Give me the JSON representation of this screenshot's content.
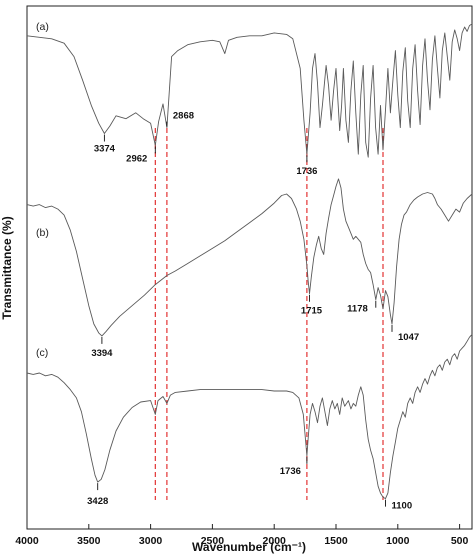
{
  "chart_data": {
    "type": "line",
    "xlabel": "Wavenumber (cm⁻¹)",
    "ylabel": "Transmittance (%)",
    "xlim": [
      4000,
      400
    ],
    "x_reversed": true,
    "x_ticks": [
      4000,
      3500,
      3000,
      2500,
      2000,
      1500,
      1000,
      500
    ],
    "y_tick_labels": false,
    "ref_line_color": "#e02020",
    "trace_color": "#5a5a5a",
    "reference_lines": [
      2962,
      2868,
      1736,
      1120
    ],
    "series": [
      {
        "name": "(a)",
        "points": [
          [
            4000,
            0.92
          ],
          [
            3900,
            0.91
          ],
          [
            3800,
            0.9
          ],
          [
            3700,
            0.87
          ],
          [
            3620,
            0.78
          ],
          [
            3550,
            0.62
          ],
          [
            3480,
            0.45
          ],
          [
            3420,
            0.33
          ],
          [
            3374,
            0.26
          ],
          [
            3330,
            0.31
          ],
          [
            3280,
            0.38
          ],
          [
            3200,
            0.36
          ],
          [
            3120,
            0.4
          ],
          [
            3060,
            0.36
          ],
          [
            3000,
            0.33
          ],
          [
            2962,
            0.18
          ],
          [
            2935,
            0.34
          ],
          [
            2900,
            0.46
          ],
          [
            2868,
            0.3
          ],
          [
            2830,
            0.78
          ],
          [
            2780,
            0.82
          ],
          [
            2700,
            0.86
          ],
          [
            2600,
            0.88
          ],
          [
            2500,
            0.89
          ],
          [
            2440,
            0.88
          ],
          [
            2400,
            0.8
          ],
          [
            2370,
            0.89
          ],
          [
            2300,
            0.91
          ],
          [
            2200,
            0.92
          ],
          [
            2100,
            0.92
          ],
          [
            2000,
            0.94
          ],
          [
            1900,
            0.93
          ],
          [
            1850,
            0.9
          ],
          [
            1790,
            0.7
          ],
          [
            1760,
            0.35
          ],
          [
            1736,
            0.12
          ],
          [
            1710,
            0.4
          ],
          [
            1690,
            0.7
          ],
          [
            1670,
            0.8
          ],
          [
            1650,
            0.6
          ],
          [
            1630,
            0.3
          ],
          [
            1610,
            0.45
          ],
          [
            1580,
            0.72
          ],
          [
            1560,
            0.58
          ],
          [
            1540,
            0.35
          ],
          [
            1520,
            0.55
          ],
          [
            1500,
            0.7
          ],
          [
            1470,
            0.28
          ],
          [
            1455,
            0.45
          ],
          [
            1440,
            0.7
          ],
          [
            1420,
            0.35
          ],
          [
            1400,
            0.2
          ],
          [
            1380,
            0.55
          ],
          [
            1360,
            0.75
          ],
          [
            1340,
            0.4
          ],
          [
            1320,
            0.12
          ],
          [
            1300,
            0.52
          ],
          [
            1280,
            0.72
          ],
          [
            1260,
            0.2
          ],
          [
            1240,
            0.1
          ],
          [
            1220,
            0.5
          ],
          [
            1200,
            0.72
          ],
          [
            1180,
            0.3
          ],
          [
            1160,
            0.12
          ],
          [
            1140,
            0.45
          ],
          [
            1120,
            0.15
          ],
          [
            1100,
            0.42
          ],
          [
            1080,
            0.7
          ],
          [
            1060,
            0.4
          ],
          [
            1040,
            0.62
          ],
          [
            1020,
            0.82
          ],
          [
            1000,
            0.52
          ],
          [
            980,
            0.3
          ],
          [
            960,
            0.68
          ],
          [
            940,
            0.84
          ],
          [
            920,
            0.48
          ],
          [
            900,
            0.3
          ],
          [
            880,
            0.7
          ],
          [
            860,
            0.86
          ],
          [
            840,
            0.55
          ],
          [
            820,
            0.32
          ],
          [
            800,
            0.72
          ],
          [
            780,
            0.9
          ],
          [
            760,
            0.62
          ],
          [
            740,
            0.42
          ],
          [
            720,
            0.76
          ],
          [
            700,
            0.92
          ],
          [
            680,
            0.7
          ],
          [
            660,
            0.5
          ],
          [
            640,
            0.82
          ],
          [
            620,
            0.94
          ],
          [
            600,
            0.78
          ],
          [
            580,
            0.62
          ],
          [
            560,
            0.88
          ],
          [
            540,
            0.96
          ],
          [
            520,
            0.9
          ],
          [
            500,
            0.82
          ],
          [
            480,
            0.94
          ],
          [
            460,
            0.98
          ],
          [
            440,
            0.95
          ],
          [
            420,
            0.99
          ],
          [
            400,
            1.0
          ]
        ]
      },
      {
        "name": "(b)",
        "points": [
          [
            4000,
            0.93
          ],
          [
            3950,
            0.92
          ],
          [
            3900,
            0.93
          ],
          [
            3850,
            0.91
          ],
          [
            3800,
            0.92
          ],
          [
            3750,
            0.9
          ],
          [
            3700,
            0.86
          ],
          [
            3650,
            0.76
          ],
          [
            3600,
            0.62
          ],
          [
            3550,
            0.44
          ],
          [
            3500,
            0.26
          ],
          [
            3460,
            0.14
          ],
          [
            3420,
            0.08
          ],
          [
            3394,
            0.06
          ],
          [
            3360,
            0.09
          ],
          [
            3320,
            0.13
          ],
          [
            3250,
            0.19
          ],
          [
            3150,
            0.26
          ],
          [
            3050,
            0.33
          ],
          [
            2962,
            0.4
          ],
          [
            2868,
            0.46
          ],
          [
            2800,
            0.49
          ],
          [
            2700,
            0.54
          ],
          [
            2600,
            0.59
          ],
          [
            2500,
            0.64
          ],
          [
            2400,
            0.69
          ],
          [
            2300,
            0.75
          ],
          [
            2200,
            0.81
          ],
          [
            2100,
            0.87
          ],
          [
            2000,
            0.94
          ],
          [
            1940,
            0.99
          ],
          [
            1900,
            1.0
          ],
          [
            1860,
            0.97
          ],
          [
            1820,
            0.9
          ],
          [
            1790,
            0.82
          ],
          [
            1760,
            0.7
          ],
          [
            1735,
            0.52
          ],
          [
            1725,
            0.42
          ],
          [
            1715,
            0.34
          ],
          [
            1700,
            0.45
          ],
          [
            1680,
            0.58
          ],
          [
            1660,
            0.66
          ],
          [
            1640,
            0.72
          ],
          [
            1620,
            0.64
          ],
          [
            1600,
            0.6
          ],
          [
            1580,
            0.74
          ],
          [
            1560,
            0.84
          ],
          [
            1540,
            0.93
          ],
          [
            1520,
            0.99
          ],
          [
            1500,
            1.05
          ],
          [
            1480,
            1.1
          ],
          [
            1460,
            1.04
          ],
          [
            1440,
            0.9
          ],
          [
            1420,
            0.82
          ],
          [
            1400,
            0.78
          ],
          [
            1380,
            0.74
          ],
          [
            1360,
            0.7
          ],
          [
            1340,
            0.72
          ],
          [
            1320,
            0.7
          ],
          [
            1300,
            0.68
          ],
          [
            1280,
            0.6
          ],
          [
            1260,
            0.54
          ],
          [
            1240,
            0.5
          ],
          [
            1220,
            0.48
          ],
          [
            1200,
            0.4
          ],
          [
            1178,
            0.3
          ],
          [
            1160,
            0.38
          ],
          [
            1140,
            0.33
          ],
          [
            1120,
            0.24
          ],
          [
            1100,
            0.36
          ],
          [
            1080,
            0.32
          ],
          [
            1060,
            0.2
          ],
          [
            1047,
            0.14
          ],
          [
            1030,
            0.28
          ],
          [
            1010,
            0.52
          ],
          [
            990,
            0.7
          ],
          [
            970,
            0.8
          ],
          [
            950,
            0.86
          ],
          [
            930,
            0.88
          ],
          [
            900,
            0.93
          ],
          [
            870,
            0.96
          ],
          [
            840,
            0.98
          ],
          [
            800,
            1.0
          ],
          [
            760,
            1.01
          ],
          [
            720,
            1.0
          ],
          [
            700,
            0.97
          ],
          [
            680,
            0.93
          ],
          [
            650,
            0.9
          ],
          [
            620,
            0.86
          ],
          [
            590,
            0.82
          ],
          [
            560,
            0.86
          ],
          [
            530,
            0.9
          ],
          [
            500,
            0.88
          ],
          [
            470,
            0.94
          ],
          [
            440,
            0.97
          ],
          [
            400,
            1.0
          ]
        ]
      },
      {
        "name": "(c)",
        "points": [
          [
            4000,
            0.92
          ],
          [
            3950,
            0.91
          ],
          [
            3900,
            0.92
          ],
          [
            3850,
            0.9
          ],
          [
            3800,
            0.91
          ],
          [
            3750,
            0.89
          ],
          [
            3700,
            0.85
          ],
          [
            3650,
            0.8
          ],
          [
            3600,
            0.74
          ],
          [
            3560,
            0.64
          ],
          [
            3520,
            0.48
          ],
          [
            3480,
            0.3
          ],
          [
            3450,
            0.18
          ],
          [
            3428,
            0.13
          ],
          [
            3400,
            0.15
          ],
          [
            3370,
            0.22
          ],
          [
            3330,
            0.36
          ],
          [
            3280,
            0.5
          ],
          [
            3220,
            0.6
          ],
          [
            3150,
            0.67
          ],
          [
            3080,
            0.71
          ],
          [
            3000,
            0.72
          ],
          [
            2962,
            0.62
          ],
          [
            2940,
            0.72
          ],
          [
            2900,
            0.75
          ],
          [
            2868,
            0.7
          ],
          [
            2840,
            0.76
          ],
          [
            2800,
            0.78
          ],
          [
            2700,
            0.79
          ],
          [
            2600,
            0.8
          ],
          [
            2500,
            0.8
          ],
          [
            2400,
            0.8
          ],
          [
            2300,
            0.8
          ],
          [
            2200,
            0.8
          ],
          [
            2100,
            0.8
          ],
          [
            2000,
            0.79
          ],
          [
            1900,
            0.79
          ],
          [
            1850,
            0.78
          ],
          [
            1800,
            0.74
          ],
          [
            1765,
            0.62
          ],
          [
            1745,
            0.42
          ],
          [
            1736,
            0.32
          ],
          [
            1725,
            0.45
          ],
          [
            1710,
            0.62
          ],
          [
            1690,
            0.7
          ],
          [
            1670,
            0.64
          ],
          [
            1650,
            0.56
          ],
          [
            1630,
            0.68
          ],
          [
            1610,
            0.74
          ],
          [
            1590,
            0.64
          ],
          [
            1570,
            0.54
          ],
          [
            1550,
            0.66
          ],
          [
            1530,
            0.72
          ],
          [
            1510,
            0.66
          ],
          [
            1490,
            0.7
          ],
          [
            1470,
            0.62
          ],
          [
            1450,
            0.74
          ],
          [
            1430,
            0.68
          ],
          [
            1400,
            0.72
          ],
          [
            1380,
            0.66
          ],
          [
            1360,
            0.7
          ],
          [
            1340,
            0.68
          ],
          [
            1320,
            0.76
          ],
          [
            1300,
            0.82
          ],
          [
            1280,
            0.76
          ],
          [
            1260,
            0.58
          ],
          [
            1240,
            0.44
          ],
          [
            1220,
            0.36
          ],
          [
            1200,
            0.3
          ],
          [
            1180,
            0.2
          ],
          [
            1160,
            0.1
          ],
          [
            1140,
            0.05
          ],
          [
            1120,
            0.02
          ],
          [
            1100,
            0.01
          ],
          [
            1080,
            0.05
          ],
          [
            1060,
            0.2
          ],
          [
            1040,
            0.32
          ],
          [
            1020,
            0.42
          ],
          [
            1000,
            0.52
          ],
          [
            980,
            0.58
          ],
          [
            960,
            0.64
          ],
          [
            940,
            0.6
          ],
          [
            920,
            0.7
          ],
          [
            900,
            0.74
          ],
          [
            880,
            0.7
          ],
          [
            860,
            0.78
          ],
          [
            840,
            0.82
          ],
          [
            820,
            0.78
          ],
          [
            800,
            0.84
          ],
          [
            780,
            0.88
          ],
          [
            760,
            0.84
          ],
          [
            740,
            0.9
          ],
          [
            720,
            0.94
          ],
          [
            700,
            0.9
          ],
          [
            680,
            0.96
          ],
          [
            660,
            0.98
          ],
          [
            640,
            0.94
          ],
          [
            620,
            1.0
          ],
          [
            600,
            1.02
          ],
          [
            580,
            0.98
          ],
          [
            560,
            1.04
          ],
          [
            540,
            1.06
          ],
          [
            520,
            1.02
          ],
          [
            500,
            1.08
          ],
          [
            480,
            1.1
          ],
          [
            460,
            1.12
          ],
          [
            440,
            1.15
          ],
          [
            420,
            1.18
          ],
          [
            400,
            1.2
          ]
        ]
      }
    ],
    "annotations": [
      {
        "series": 0,
        "x": 3374,
        "text": "3374"
      },
      {
        "series": 0,
        "x": 2962,
        "text": "2962"
      },
      {
        "series": 0,
        "x": 2868,
        "text": "2868"
      },
      {
        "series": 0,
        "x": 1736,
        "text": "1736"
      },
      {
        "series": 1,
        "x": 3394,
        "text": "3394"
      },
      {
        "series": 1,
        "x": 1715,
        "text": "1715"
      },
      {
        "series": 1,
        "x": 1178,
        "text": "1178"
      },
      {
        "series": 1,
        "x": 1047,
        "text": "1047"
      },
      {
        "series": 2,
        "x": 3428,
        "text": "3428"
      },
      {
        "series": 2,
        "x": 1736,
        "text": "1736"
      },
      {
        "series": 2,
        "x": 1100,
        "text": "1100"
      }
    ]
  }
}
